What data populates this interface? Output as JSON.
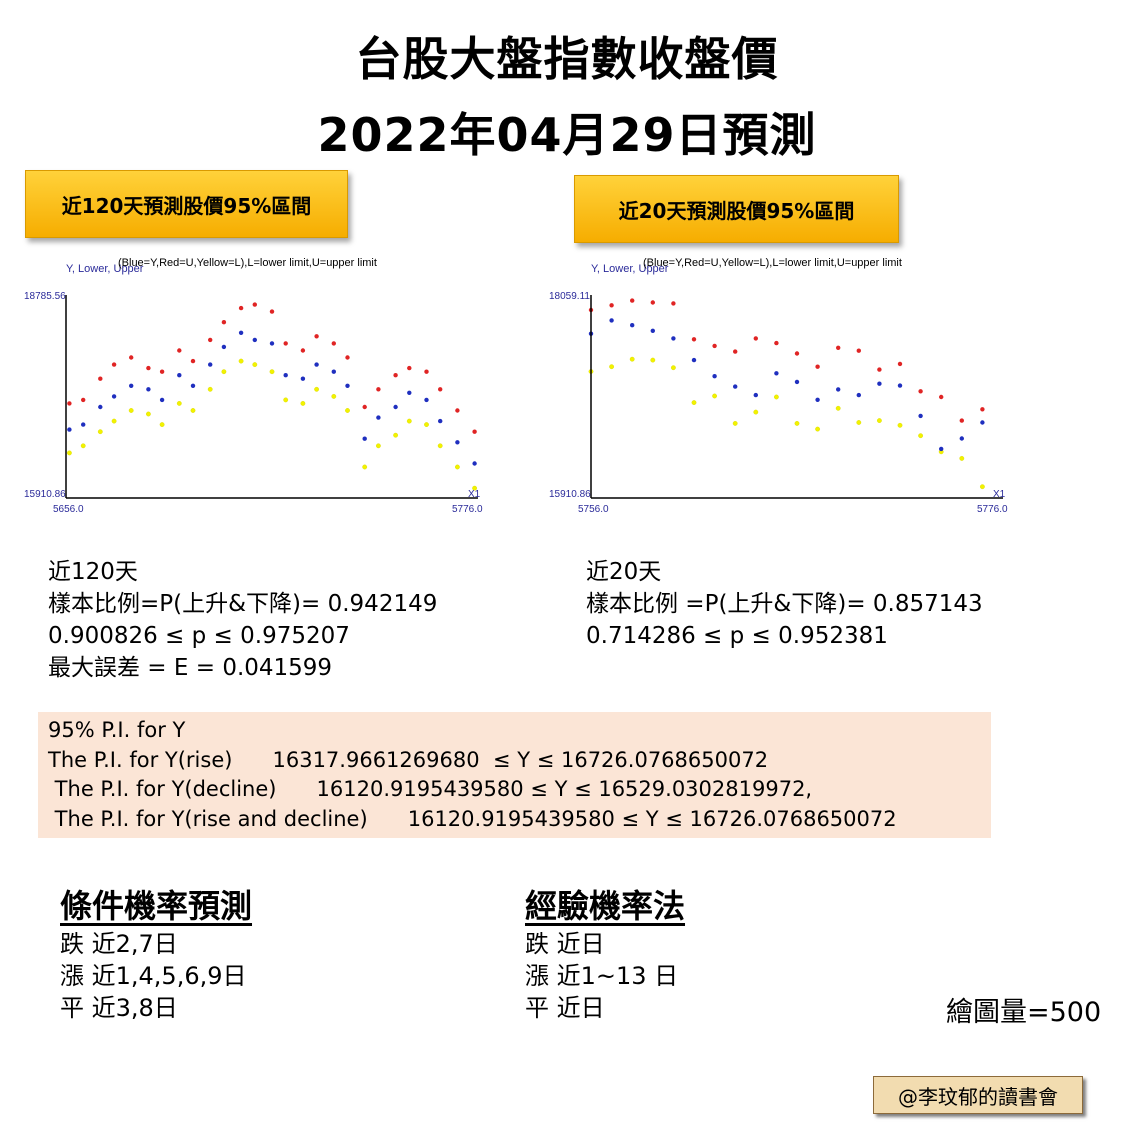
{
  "title_line1": "台股大盤指數收盤價",
  "title_line2": "2022年04月29日預測",
  "badges": {
    "left": "近120天預測股價95%區間",
    "right": "近20天預測股價95%區間"
  },
  "chart_data": [
    {
      "type": "scatter",
      "ylabel": "Y, Lower, Upper",
      "legend_note": "(Blue=Y,Red=U,Yellow=L),L=lower limit,U=upper limit",
      "xlabel": "X1",
      "ymax_label": "18785.56",
      "ymin_label": "15910.86",
      "xmin_label": "5656.0",
      "xmax_label": "5776.0",
      "xlim": [
        5656,
        5776
      ],
      "ylim": [
        15910.86,
        18785.56
      ],
      "colors": {
        "Y": "#1f2fbf",
        "U": "#e02424",
        "L": "#f2f200"
      },
      "series": [
        {
          "name": "Y",
          "color": "#1f2fbf",
          "x": [
            5657,
            5661,
            5666,
            5670,
            5675,
            5680,
            5684,
            5689,
            5693,
            5698,
            5702,
            5707,
            5711,
            5716,
            5720,
            5725,
            5729,
            5734,
            5738,
            5743,
            5747,
            5752,
            5756,
            5761,
            5765,
            5770,
            5775
          ],
          "y": [
            16880,
            16950,
            17200,
            17350,
            17500,
            17450,
            17300,
            17650,
            17500,
            17800,
            18050,
            18250,
            18150,
            18100,
            17650,
            17600,
            17800,
            17700,
            17500,
            16750,
            17050,
            17200,
            17400,
            17300,
            17000,
            16700,
            16400
          ]
        },
        {
          "name": "U",
          "color": "#e02424",
          "x": [
            5657,
            5661,
            5666,
            5670,
            5675,
            5680,
            5684,
            5689,
            5693,
            5698,
            5702,
            5707,
            5711,
            5716,
            5720,
            5725,
            5729,
            5734,
            5738,
            5743,
            5747,
            5752,
            5756,
            5761,
            5765,
            5770,
            5775
          ],
          "y": [
            17250,
            17300,
            17600,
            17800,
            17900,
            17750,
            17700,
            18000,
            17850,
            18150,
            18400,
            18600,
            18650,
            18550,
            18100,
            18000,
            18200,
            18100,
            17900,
            17200,
            17450,
            17650,
            17750,
            17700,
            17450,
            17150,
            16850
          ]
        },
        {
          "name": "L",
          "color": "#f2f200",
          "x": [
            5657,
            5661,
            5666,
            5670,
            5675,
            5680,
            5684,
            5689,
            5693,
            5698,
            5702,
            5707,
            5711,
            5716,
            5720,
            5725,
            5729,
            5734,
            5738,
            5743,
            5747,
            5752,
            5756,
            5761,
            5765,
            5770,
            5775
          ],
          "y": [
            16550,
            16650,
            16850,
            17000,
            17150,
            17100,
            16950,
            17250,
            17150,
            17450,
            17700,
            17850,
            17800,
            17700,
            17300,
            17250,
            17450,
            17350,
            17150,
            16350,
            16650,
            16800,
            17000,
            16950,
            16650,
            16350,
            16050
          ]
        }
      ]
    },
    {
      "type": "scatter",
      "ylabel": "Y, Lower, Upper",
      "legend_note": "(Blue=Y,Red=U,Yellow=L),L=lower limit,U=upper limit",
      "xlabel": "X1",
      "ymax_label": "18059.11",
      "ymin_label": "15910.86",
      "xmin_label": "5756.0",
      "xmax_label": "5776.0",
      "xlim": [
        5756,
        5776
      ],
      "ylim": [
        15910.86,
        18059.11
      ],
      "colors": {
        "Y": "#1f2fbf",
        "U": "#e02424",
        "L": "#f2f200"
      },
      "series": [
        {
          "name": "Y",
          "color": "#1f2fbf",
          "x": [
            5756,
            5757,
            5758,
            5759,
            5760,
            5761,
            5762,
            5763,
            5764,
            5765,
            5766,
            5767,
            5768,
            5769,
            5770,
            5771,
            5772,
            5773,
            5774,
            5775
          ],
          "y": [
            17650,
            17790,
            17740,
            17680,
            17600,
            17370,
            17200,
            17090,
            17000,
            17230,
            17140,
            16950,
            17060,
            17000,
            17120,
            17100,
            16780,
            16430,
            16540,
            16710
          ]
        },
        {
          "name": "U",
          "color": "#e02424",
          "x": [
            5756,
            5757,
            5758,
            5759,
            5760,
            5761,
            5762,
            5763,
            5764,
            5765,
            5766,
            5767,
            5768,
            5769,
            5770,
            5771,
            5772,
            5773,
            5774,
            5775
          ],
          "y": [
            17900,
            17950,
            18000,
            17980,
            17970,
            17590,
            17520,
            17460,
            17600,
            17550,
            17440,
            17300,
            17500,
            17470,
            17270,
            17330,
            17040,
            16980,
            16730,
            16850
          ]
        },
        {
          "name": "L",
          "color": "#f2f200",
          "x": [
            5756,
            5757,
            5758,
            5759,
            5760,
            5761,
            5762,
            5763,
            5764,
            5765,
            5766,
            5767,
            5768,
            5769,
            5770,
            5771,
            5772,
            5773,
            5774,
            5775
          ],
          "y": [
            17250,
            17300,
            17380,
            17370,
            17290,
            16920,
            16990,
            16700,
            16820,
            16980,
            16700,
            16640,
            16860,
            16710,
            16730,
            16680,
            16570,
            16400,
            16330,
            16030
          ]
        }
      ]
    }
  ],
  "stats_left": {
    "line1": "近120天",
    "line2": "樣本比例=P(上升&下降)= 0.942149",
    "line3": "0.900826 ≤ p ≤ 0.975207",
    "line4": "最大誤差 = E = 0.041599"
  },
  "stats_right": {
    "line1": "近20天",
    "line2": "樣本比例 =P(上升&下降)= 0.857143",
    "line3": "0.714286 ≤ p ≤ 0.952381"
  },
  "pi": {
    "heading": "95% P.I. for Y",
    "rise": "The P.I. for Y(rise)      16317.9661269680  ≤ Y ≤ 16726.0768650072",
    "decline": " The P.I. for Y(decline)      16120.9195439580 ≤ Y ≤ 16529.0302819972,",
    "both": " The P.I. for Y(rise and decline)      16120.9195439580 ≤ Y ≤ 16726.0768650072"
  },
  "conditional": {
    "heading": "條件機率預測",
    "fall": "跌  近2,7日",
    "rise": "漲  近1,4,5,6,9日",
    "flat": "平  近3,8日"
  },
  "empirical": {
    "heading": "經驗機率法",
    "fall": "跌  近日",
    "rise": "漲  近1~13 日",
    "flat": "平  近日"
  },
  "draw_count": "繪圖量=500",
  "footer": "@李玟郁的讀書會"
}
